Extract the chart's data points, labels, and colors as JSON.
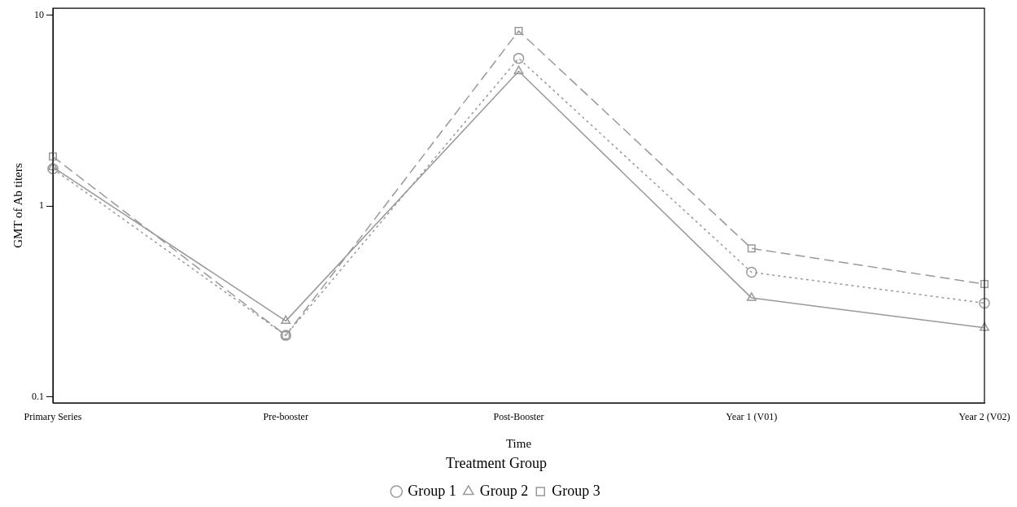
{
  "chart_data": {
    "type": "line",
    "xlabel": "Time",
    "ylabel": "GMT of Ab titers",
    "legend_title": "Treatment Group",
    "categories": [
      "Primary Series",
      "Pre-booster",
      "Post-Booster",
      "Year 1 (V01)",
      "Year 2 (V02)"
    ],
    "series": [
      {
        "name": "Group 1",
        "color": "#999999",
        "marker": "circle",
        "line_style": "dotted",
        "values": [
          1.57,
          0.21,
          5.96,
          0.45,
          0.31
        ]
      },
      {
        "name": "Group 2",
        "color": "#999999",
        "marker": "triangle",
        "line_style": "solid",
        "values": [
          1.6,
          0.25,
          5.1,
          0.33,
          0.23
        ]
      },
      {
        "name": "Group 3",
        "color": "#999999",
        "marker": "square",
        "line_style": "dashed",
        "values": [
          1.82,
          0.21,
          8.3,
          0.6,
          0.39
        ]
      }
    ],
    "log": "y",
    "ylim": [
      0.093,
      10.9
    ],
    "yticks": [
      0.1,
      1,
      10
    ],
    "grid": false,
    "legend": "bottom"
  }
}
